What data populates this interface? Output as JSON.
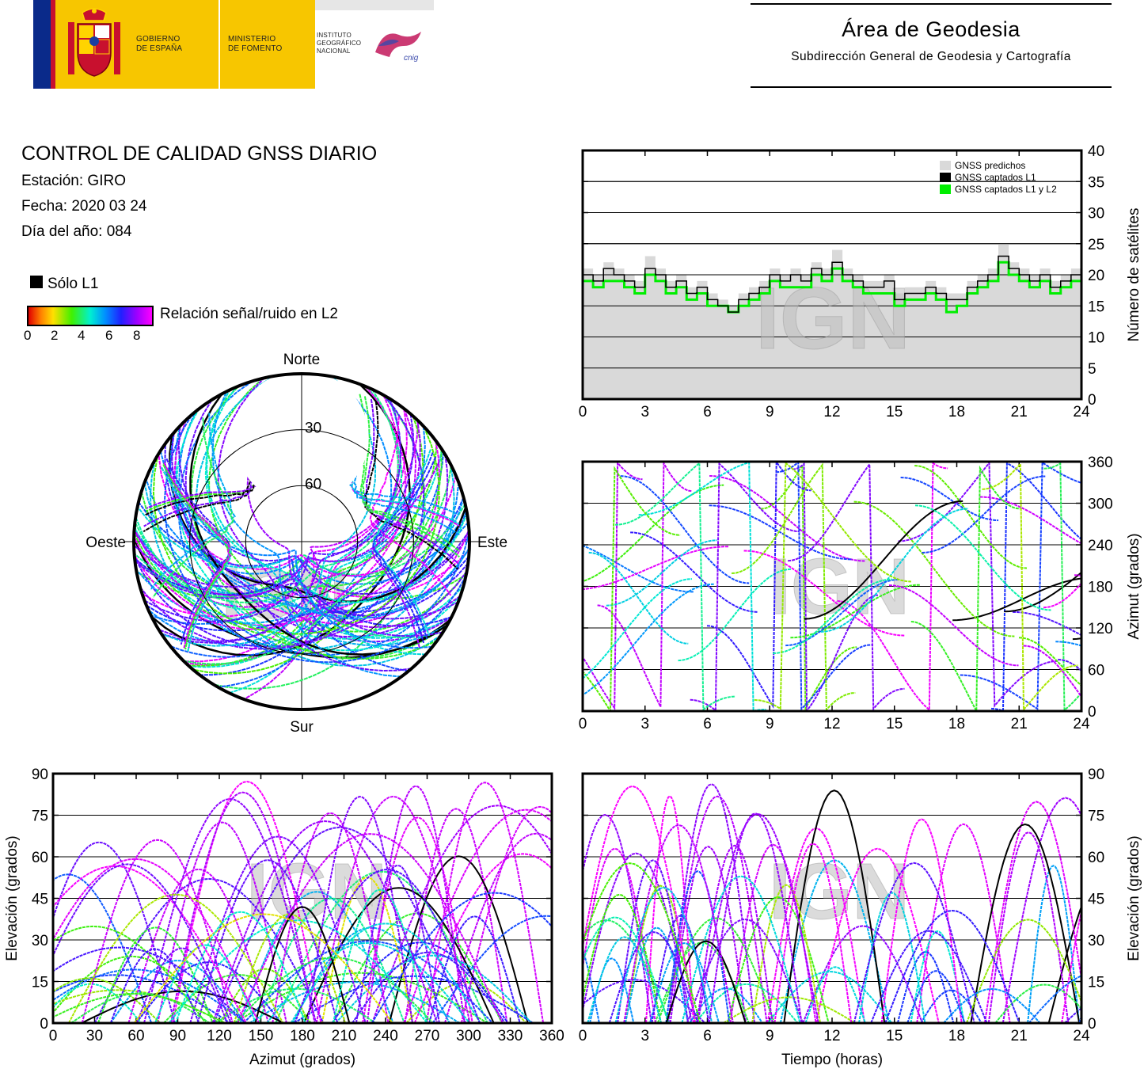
{
  "header": {
    "gov_line1": "GOBIERNO",
    "gov_line2": "DE ESPAÑA",
    "min_line1": "MINISTERIO",
    "min_line2": "DE FOMENTO",
    "ign_line1": "INSTITUTO",
    "ign_line2": "GEOGRÁFICO",
    "ign_line3": "NACIONAL",
    "cnig": "cnig",
    "area_title": "Área de Geodesia",
    "area_subtitle": "Subdirección General de Geodesia y Cartografía"
  },
  "info": {
    "title": "CONTROL DE CALIDAD GNSS DIARIO",
    "station": "Estación: GIRO",
    "date": "Fecha: 2020 03 24",
    "doy": "Día del año: 084"
  },
  "legend": {
    "l1_only": "Sólo L1",
    "snr_label": "Relación señal/ruido en L2",
    "snr_ticks": [
      "0",
      "2",
      "4",
      "6",
      "8"
    ],
    "snr_colors": [
      "#e00000",
      "#ff8000",
      "#ffe000",
      "#40f000",
      "#00f0d0",
      "#0090ff",
      "#2020ff",
      "#a000ff",
      "#ff00ff"
    ]
  },
  "watermark": "IGN",
  "chart_data": [
    {
      "type": "line",
      "id": "satellites",
      "ylabel": "Número de satélites",
      "xlim": [
        0,
        24
      ],
      "ylim": [
        0,
        40
      ],
      "xticks": [
        0,
        3,
        6,
        9,
        12,
        15,
        18,
        21,
        24
      ],
      "yticks": [
        0,
        5,
        10,
        15,
        20,
        25,
        30,
        35,
        40
      ],
      "grid": true,
      "legend_position": "top-right",
      "series": [
        {
          "name": "GNSS predichos",
          "color": "#d9d9d9",
          "x": [
            0,
            0.5,
            1,
            1.5,
            2,
            2.5,
            3,
            3.5,
            4,
            4.5,
            5,
            5.5,
            6,
            6.5,
            7,
            7.5,
            8,
            8.5,
            9,
            9.5,
            10,
            10.5,
            11,
            11.5,
            12,
            12.5,
            13,
            13.5,
            14,
            14.5,
            15,
            15.5,
            16,
            16.5,
            17,
            17.5,
            18,
            18.5,
            19,
            19.5,
            20,
            20.5,
            21,
            21.5,
            22,
            22.5,
            23,
            23.5,
            24
          ],
          "values": [
            21,
            20,
            22,
            21,
            20,
            19,
            23,
            21,
            19,
            20,
            18,
            19,
            17,
            16,
            15,
            17,
            18,
            19,
            21,
            20,
            21,
            20,
            22,
            21,
            24,
            21,
            20,
            19,
            19,
            20,
            17,
            18,
            18,
            19,
            18,
            17,
            17,
            19,
            20,
            21,
            25,
            22,
            21,
            20,
            21,
            19,
            20,
            21,
            21
          ]
        },
        {
          "name": "GNSS captados L1",
          "color": "#000000",
          "x": [
            0,
            0.5,
            1,
            1.5,
            2,
            2.5,
            3,
            3.5,
            4,
            4.5,
            5,
            5.5,
            6,
            6.5,
            7,
            7.5,
            8,
            8.5,
            9,
            9.5,
            10,
            10.5,
            11,
            11.5,
            12,
            12.5,
            13,
            13.5,
            14,
            14.5,
            15,
            15.5,
            16,
            16.5,
            17,
            17.5,
            18,
            18.5,
            19,
            19.5,
            20,
            20.5,
            21,
            21.5,
            22,
            22.5,
            23,
            23.5,
            24
          ],
          "values": [
            20,
            19,
            21,
            20,
            19,
            18,
            21,
            20,
            18,
            19,
            17,
            18,
            16,
            15,
            14,
            16,
            17,
            18,
            20,
            19,
            20,
            19,
            21,
            20,
            22,
            20,
            19,
            18,
            18,
            19,
            16,
            17,
            17,
            18,
            17,
            16,
            16,
            18,
            19,
            20,
            23,
            21,
            20,
            19,
            20,
            18,
            19,
            20,
            20
          ]
        },
        {
          "name": "GNSS captados L1 y L2",
          "color": "#00ee00",
          "x": [
            0,
            0.5,
            1,
            1.5,
            2,
            2.5,
            3,
            3.5,
            4,
            4.5,
            5,
            5.5,
            6,
            6.5,
            7,
            7.5,
            8,
            8.5,
            9,
            9.5,
            10,
            10.5,
            11,
            11.5,
            12,
            12.5,
            13,
            13.5,
            14,
            14.5,
            15,
            15.5,
            16,
            16.5,
            17,
            17.5,
            18,
            18.5,
            19,
            19.5,
            20,
            20.5,
            21,
            21.5,
            22,
            22.5,
            23,
            23.5,
            24
          ],
          "values": [
            19,
            18,
            19,
            19,
            18,
            17,
            20,
            19,
            17,
            18,
            16,
            17,
            15,
            15,
            14,
            15,
            16,
            17,
            19,
            18,
            18,
            18,
            20,
            19,
            21,
            19,
            18,
            17,
            17,
            17,
            15,
            16,
            16,
            17,
            16,
            14,
            15,
            17,
            18,
            19,
            22,
            20,
            19,
            18,
            19,
            17,
            18,
            19,
            19
          ]
        }
      ]
    },
    {
      "type": "scatter",
      "id": "skyplot",
      "labels": {
        "north": "Norte",
        "south": "Sur",
        "east": "Este",
        "west": "Oeste"
      },
      "rings": [
        30,
        60
      ]
    },
    {
      "type": "scatter",
      "id": "azimuth-time",
      "ylabel": "Azimut (grados)",
      "xlim": [
        0,
        24
      ],
      "ylim": [
        0,
        360
      ],
      "xticks": [
        0,
        3,
        6,
        9,
        12,
        15,
        18,
        21,
        24
      ],
      "yticks": [
        0,
        60,
        120,
        180,
        240,
        300,
        360
      ]
    },
    {
      "type": "scatter",
      "id": "elevation-azimuth",
      "xlabel": "Azimut (grados)",
      "ylabel": "Elevación (grados)",
      "xlim": [
        0,
        360
      ],
      "ylim": [
        0,
        90
      ],
      "xticks": [
        0,
        30,
        60,
        90,
        120,
        150,
        180,
        210,
        240,
        270,
        300,
        330,
        360
      ],
      "yticks": [
        0,
        15,
        30,
        45,
        60,
        75,
        90
      ]
    },
    {
      "type": "scatter",
      "id": "elevation-time",
      "xlabel": "Tiempo (horas)",
      "ylabel": "Elevación (grados)",
      "xlim": [
        0,
        24
      ],
      "ylim": [
        0,
        90
      ],
      "xticks": [
        0,
        3,
        6,
        9,
        12,
        15,
        18,
        21,
        24
      ],
      "yticks": [
        0,
        15,
        30,
        45,
        60,
        75,
        90
      ]
    }
  ]
}
